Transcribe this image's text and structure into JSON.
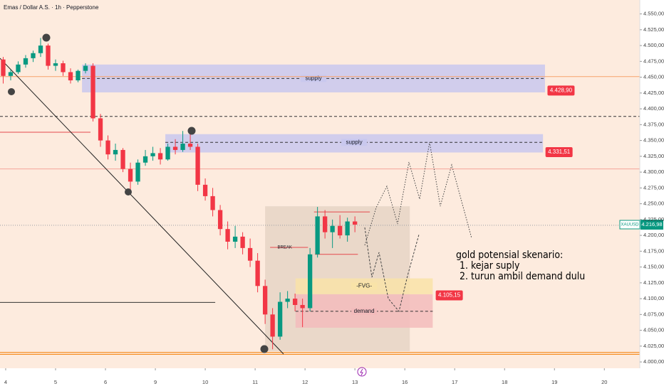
{
  "chart_data": {
    "type": "candlestick",
    "title": "Emas / Dollar A.S. · 1h · Pepperstone",
    "xlim": [
      -0.114,
      12.71
    ],
    "ylim": [
      3990,
      4572
    ],
    "xticks": [
      {
        "value": 0,
        "label": "4"
      },
      {
        "value": 1,
        "label": "5"
      },
      {
        "value": 2,
        "label": "6"
      },
      {
        "value": 3,
        "label": "9"
      },
      {
        "value": 4,
        "label": "10"
      },
      {
        "value": 5,
        "label": "11"
      },
      {
        "value": 6,
        "label": "12"
      },
      {
        "value": 7,
        "label": "13"
      },
      {
        "value": 8,
        "label": "16"
      },
      {
        "value": 9,
        "label": "17"
      },
      {
        "value": 10,
        "label": "18"
      },
      {
        "value": 11,
        "label": "19"
      },
      {
        "value": 12,
        "label": "20"
      }
    ],
    "yticks": [
      {
        "value": 4000,
        "label": "4.000,00"
      },
      {
        "value": 4025,
        "label": "4.025,00"
      },
      {
        "value": 4050,
        "label": "4.050,00"
      },
      {
        "value": 4075,
        "label": "4.075,00"
      },
      {
        "value": 4100,
        "label": "4.100,00"
      },
      {
        "value": 4125,
        "label": "4.125,00"
      },
      {
        "value": 4150,
        "label": "4.150,00"
      },
      {
        "value": 4175,
        "label": "4.175,00"
      },
      {
        "value": 4200,
        "label": "4.200,00"
      },
      {
        "value": 4225,
        "label": "4.225,00"
      },
      {
        "value": 4250,
        "label": "4.250,00"
      },
      {
        "value": 4275,
        "label": "4.275,00"
      },
      {
        "value": 4300,
        "label": "4.300,00"
      },
      {
        "value": 4325,
        "label": "4.325,00"
      },
      {
        "value": 4350,
        "label": "4.350,00"
      },
      {
        "value": 4375,
        "label": "4.375,00"
      },
      {
        "value": 4400,
        "label": "4.400,00"
      },
      {
        "value": 4425,
        "label": "4.425,00"
      },
      {
        "value": 4450,
        "label": "4.450,00"
      },
      {
        "value": 4475,
        "label": "4.475,00"
      },
      {
        "value": 4500,
        "label": "4.500,00"
      },
      {
        "value": 4525,
        "label": "4.525,00"
      },
      {
        "value": 4550,
        "label": "4.550,00"
      }
    ],
    "up_color": "#089981",
    "down_color": "#f23645",
    "x": [
      -0.05,
      0.1,
      0.25,
      0.4,
      0.55,
      0.7,
      0.85,
      1,
      1.15,
      1.3,
      1.45,
      1.6,
      1.75,
      1.9,
      2.05,
      2.2,
      2.35,
      2.5,
      2.65,
      2.8,
      2.95,
      3.1,
      3.25,
      3.4,
      3.55,
      3.7,
      3.85,
      4,
      4.15,
      4.3,
      4.45,
      4.6,
      4.75,
      4.9,
      5.05,
      5.2,
      5.35,
      5.5,
      5.65,
      5.8,
      5.95,
      6.1,
      6.25,
      6.4,
      6.55,
      6.7,
      6.85,
      7
    ],
    "candles": [
      [
        4478,
        4482,
        4440,
        4452
      ],
      [
        4452,
        4462,
        4445,
        4458
      ],
      [
        4458,
        4475,
        4455,
        4470
      ],
      [
        4470,
        4485,
        4465,
        4480
      ],
      [
        4480,
        4492,
        4474,
        4488
      ],
      [
        4488,
        4512,
        4482,
        4500
      ],
      [
        4500,
        4503,
        4462,
        4468
      ],
      [
        4468,
        4478,
        4460,
        4472
      ],
      [
        4472,
        4476,
        4452,
        4458
      ],
      [
        4458,
        4464,
        4440,
        4445
      ],
      [
        4445,
        4462,
        4442,
        4460
      ],
      [
        4460,
        4472,
        4456,
        4468
      ],
      [
        4468,
        4472,
        4380,
        4385
      ],
      [
        4385,
        4392,
        4340,
        4350
      ],
      [
        4350,
        4358,
        4320,
        4328
      ],
      [
        4328,
        4345,
        4318,
        4335
      ],
      [
        4335,
        4338,
        4300,
        4305
      ],
      [
        4305,
        4315,
        4268,
        4285
      ],
      [
        4285,
        4320,
        4280,
        4315
      ],
      [
        4315,
        4335,
        4310,
        4325
      ],
      [
        4325,
        4340,
        4318,
        4330
      ],
      [
        4330,
        4338,
        4312,
        4320
      ],
      [
        4320,
        4345,
        4318,
        4340
      ],
      [
        4340,
        4352,
        4328,
        4335
      ],
      [
        4335,
        4365,
        4332,
        4345
      ],
      [
        4345,
        4362,
        4335,
        4340
      ],
      [
        4340,
        4345,
        4270,
        4280
      ],
      [
        4280,
        4290,
        4255,
        4262
      ],
      [
        4262,
        4275,
        4230,
        4240
      ],
      [
        4240,
        4248,
        4200,
        4210
      ],
      [
        4210,
        4222,
        4178,
        4190
      ],
      [
        4190,
        4215,
        4180,
        4198
      ],
      [
        4198,
        4205,
        4170,
        4180
      ],
      [
        4180,
        4195,
        4150,
        4160
      ],
      [
        4160,
        4172,
        4110,
        4120
      ],
      [
        4120,
        4130,
        4060,
        4075
      ],
      [
        4075,
        4085,
        4020,
        4040
      ],
      [
        4040,
        4110,
        4035,
        4095
      ],
      [
        4095,
        4112,
        4085,
        4100
      ],
      [
        4100,
        4108,
        4080,
        4090
      ],
      [
        4090,
        4100,
        4055,
        4085
      ],
      [
        4085,
        4180,
        4080,
        4170
      ],
      [
        4170,
        4245,
        4165,
        4230
      ],
      [
        4230,
        4240,
        4195,
        4205
      ],
      [
        4205,
        4225,
        4180,
        4215
      ],
      [
        4215,
        4232,
        4195,
        4200
      ],
      [
        4200,
        4228,
        4190,
        4222
      ],
      [
        4222,
        4230,
        4205,
        4217
      ]
    ],
    "hlines": [
      {
        "y": 4451,
        "color": "#f7a36b",
        "style": "solid"
      },
      {
        "y": 4388,
        "color": "#333333",
        "style": "dashed"
      },
      {
        "y": 4305,
        "color": "#f4a49a",
        "style": "solid"
      },
      {
        "y": 4216,
        "color": "#9aa0a6",
        "style": "dotted"
      },
      {
        "y": 4015,
        "color": "#f57c00",
        "style": "solid"
      },
      {
        "y": 4012,
        "color": "#f57c00",
        "style": "solid"
      }
    ],
    "zones": [
      {
        "label": "supply",
        "x": [
          1.53,
          10.81
        ],
        "y": [
          4426,
          4470
        ],
        "line": 4448,
        "color": "#c9c8ee"
      },
      {
        "label": "supply",
        "x": [
          3.2,
          10.77
        ],
        "y": [
          4331,
          4360
        ],
        "line": 4347,
        "color": "#c9c8ee"
      },
      {
        "x": [
          5.2,
          8.1
        ],
        "y": [
          4017,
          4246
        ],
        "color": "#e6d5c6"
      },
      {
        "label": "demand",
        "x": [
          5.81,
          8.56
        ],
        "y": [
          4054,
          4107
        ],
        "line": 4080,
        "color": "#f3bcbc"
      },
      {
        "label": "-FVG-",
        "x": [
          5.81,
          8.56
        ],
        "y": [
          4107,
          4132
        ],
        "line": 4120,
        "color": "#f9e3a8"
      }
    ],
    "segments": [
      {
        "label": "BREAK",
        "x": [
          5.3,
          6.06
        ],
        "y": 4181,
        "color": "#e5484d"
      },
      {
        "x": [
          6.18,
          7.3
        ],
        "y": 4237,
        "color": "#e5484d"
      },
      {
        "x": [
          6.2,
          7.06
        ],
        "y": 4170,
        "color": "#e5484d"
      },
      {
        "x": [
          -0.114,
          4.2
        ],
        "y": 4094,
        "color": "#333333"
      },
      {
        "x": [
          -0.114,
          1.7
        ],
        "y": 4363,
        "color": "#e5484d"
      }
    ],
    "price_tags": [
      {
        "value": 4428.9,
        "label": "4.428,90",
        "x": 10.86
      },
      {
        "value": 4331.51,
        "label": "4.331,51",
        "x": 10.82
      },
      {
        "value": 4105.15,
        "label": "4.105,15",
        "x": 8.62
      }
    ],
    "last_price": {
      "symbol": "XAUUSD",
      "value": 4216.98,
      "label": "4.216,98",
      "color": "#089981"
    },
    "annotation": [
      "gold potensial skenario:",
      "1. kejar suply",
      "2. turun ambil demand dulu"
    ]
  }
}
